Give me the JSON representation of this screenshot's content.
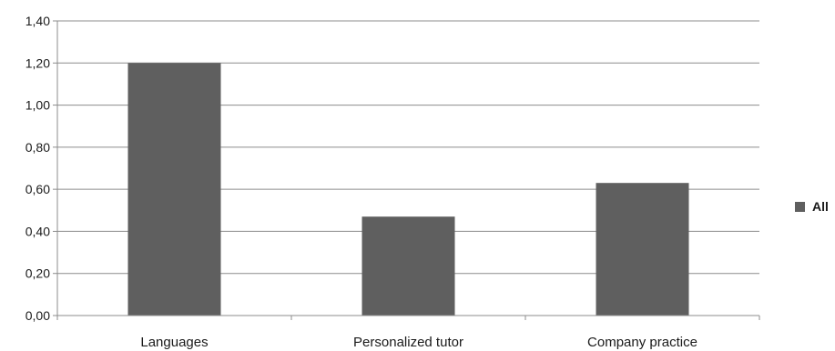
{
  "chart_data": {
    "type": "bar",
    "categories": [
      "Languages",
      "Personalized tutor",
      "Company practice"
    ],
    "series": [
      {
        "name": "All",
        "values": [
          1.2,
          0.47,
          0.63
        ]
      }
    ],
    "ylim": [
      0,
      1.4
    ],
    "yticks": [
      "0,00",
      "0,20",
      "0,40",
      "0,60",
      "0,80",
      "1,00",
      "1,20",
      "1,40"
    ],
    "grid": true,
    "legend_position": "right",
    "bar_color": "#5f5f5f"
  }
}
